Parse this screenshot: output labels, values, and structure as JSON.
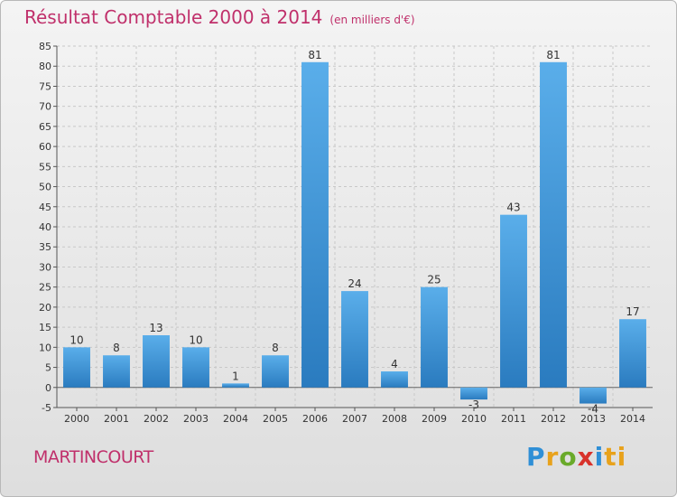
{
  "chart_data": {
    "type": "bar",
    "title": "Résultat Comptable 2000 à 2014",
    "subtitle": "(en milliers d'€)",
    "categories": [
      "2000",
      "2001",
      "2002",
      "2003",
      "2004",
      "2005",
      "2006",
      "2007",
      "2008",
      "2009",
      "2010",
      "2011",
      "2012",
      "2013",
      "2014"
    ],
    "values": [
      10,
      8,
      13,
      10,
      1,
      8,
      81,
      24,
      4,
      25,
      -3,
      43,
      81,
      -4,
      17
    ],
    "value_labels": [
      "10",
      "8",
      "13",
      "10",
      "1",
      "8",
      "81",
      "24",
      "4",
      "25",
      "-3",
      "43",
      "81",
      "-4",
      "17"
    ],
    "xlabel": "",
    "ylabel": "",
    "ylim": [
      -5,
      85
    ],
    "yticks": [
      "-5",
      "0",
      "5",
      "10",
      "15",
      "20",
      "25",
      "30",
      "35",
      "40",
      "45",
      "50",
      "55",
      "60",
      "65",
      "70",
      "75",
      "80",
      "85"
    ],
    "grid": true,
    "bar_color_top": "#5aaeea",
    "bar_color_bottom": "#2a7bbf"
  },
  "footer": {
    "town": "MARTINCOURT",
    "logo_letters": [
      "P",
      "r",
      "o",
      "x",
      "i",
      "ti"
    ]
  }
}
